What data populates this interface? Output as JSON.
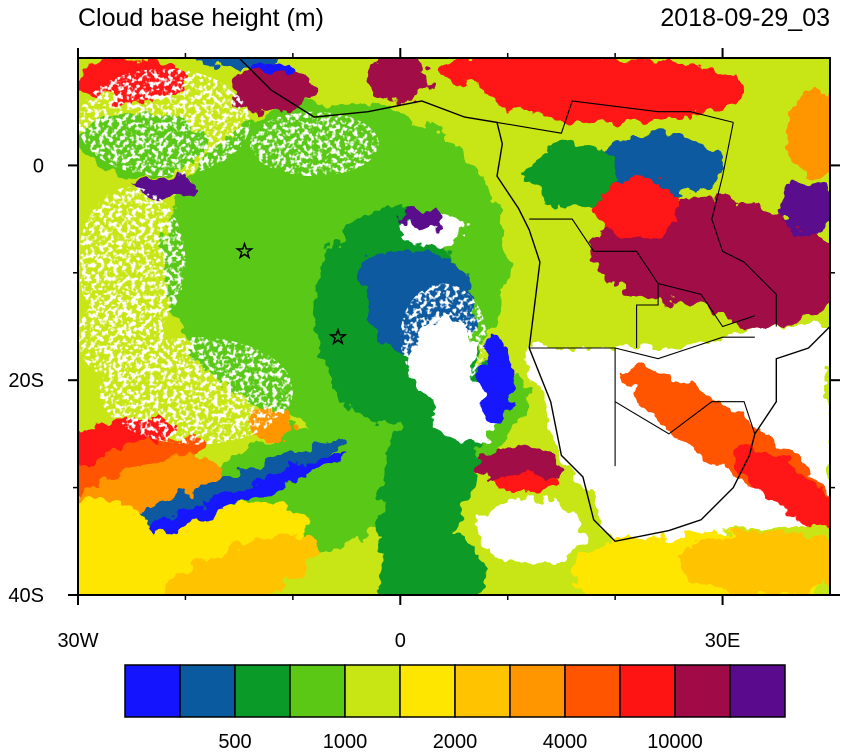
{
  "title": "Cloud base height (m)",
  "valid_time": "2018-09-29_03",
  "map": {
    "lon_range": [
      -30,
      40
    ],
    "lat_range": [
      -40,
      10
    ],
    "lon_ticks": [
      {
        "value": -30,
        "label": "30W"
      },
      0,
      {
        "value": 30,
        "label": "30E"
      }
    ],
    "lat_ticks": [
      0,
      {
        "value": -20,
        "label": "20S"
      },
      {
        "value": -40,
        "label": "40S"
      }
    ]
  },
  "colorbar": {
    "colors": [
      "#1414ff",
      "#0a5aa0",
      "#0a9a28",
      "#5ac814",
      "#c8e614",
      "#ffe600",
      "#ffc300",
      "#ff9600",
      "#ff5500",
      "#ff1414",
      "#a00a46",
      "#5a0a8c"
    ],
    "labels": [
      500,
      1000,
      2000,
      4000,
      10000
    ]
  }
}
